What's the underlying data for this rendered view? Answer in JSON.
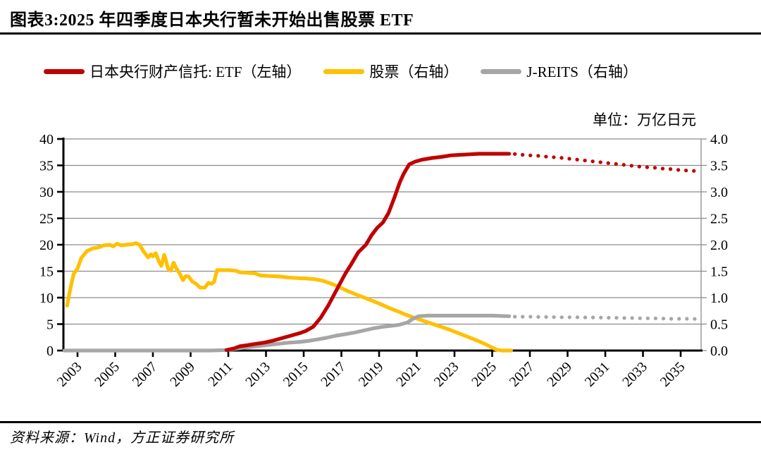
{
  "header": {
    "title": "图表3:2025 年四季度日本央行暂未开始出售股票 ETF"
  },
  "footer": {
    "source": "资料来源：Wind，方正证券研究所"
  },
  "chart_data": {
    "type": "line",
    "title": "图表3:2025 年四季度日本央行暂未开始出售股票 ETF",
    "unit_label": "单位：万亿日元",
    "grid": true,
    "legend_position": "top",
    "colors": {
      "etf_red": "#C00000",
      "stock_yellow": "#FFC000",
      "jreits_gray": "#A6A6A6",
      "gridline": "#8C8C8C",
      "axis": "#000000"
    },
    "x_axis": {
      "tick_labels": [
        "2003",
        "2005",
        "2007",
        "2009",
        "2011",
        "2013",
        "2015",
        "2017",
        "2019",
        "2021",
        "2023",
        "2025",
        "2027",
        "2029",
        "2031",
        "2033",
        "2035"
      ],
      "range": [
        2002.3,
        2036.1
      ]
    },
    "y_axis_left": {
      "tick_labels": [
        "0",
        "5",
        "10",
        "15",
        "20",
        "25",
        "30",
        "35",
        "40"
      ],
      "range": [
        0,
        40
      ]
    },
    "y_axis_right": {
      "tick_labels": [
        "0.0",
        "0.5",
        "1.0",
        "1.5",
        "2.0",
        "2.5",
        "3.0",
        "3.5",
        "4.0"
      ],
      "range": [
        0,
        4
      ]
    },
    "series": [
      {
        "name": "股票（右轴）",
        "axis": "right",
        "color": "#FFC000",
        "solid": [
          [
            2002.45,
            0.85
          ],
          [
            2002.55,
            1.05
          ],
          [
            2002.7,
            1.3
          ],
          [
            2002.8,
            1.45
          ],
          [
            2003.0,
            1.55
          ],
          [
            2003.2,
            1.75
          ],
          [
            2003.5,
            1.88
          ],
          [
            2003.8,
            1.93
          ],
          [
            2004.1,
            1.95
          ],
          [
            2004.4,
            1.99
          ],
          [
            2004.7,
            2.0
          ],
          [
            2004.9,
            1.97
          ],
          [
            2005.1,
            2.02
          ],
          [
            2005.3,
            1.99
          ],
          [
            2005.6,
            2.0
          ],
          [
            2005.9,
            2.01
          ],
          [
            2006.1,
            2.03
          ],
          [
            2006.3,
            2.0
          ],
          [
            2006.45,
            1.9
          ],
          [
            2006.6,
            1.83
          ],
          [
            2006.75,
            1.76
          ],
          [
            2006.9,
            1.82
          ],
          [
            2007.0,
            1.78
          ],
          [
            2007.15,
            1.84
          ],
          [
            2007.3,
            1.7
          ],
          [
            2007.45,
            1.6
          ],
          [
            2007.6,
            1.81
          ],
          [
            2007.7,
            1.7
          ],
          [
            2007.8,
            1.55
          ],
          [
            2007.95,
            1.51
          ],
          [
            2008.1,
            1.66
          ],
          [
            2008.25,
            1.55
          ],
          [
            2008.4,
            1.47
          ],
          [
            2008.6,
            1.33
          ],
          [
            2008.75,
            1.41
          ],
          [
            2008.9,
            1.4
          ],
          [
            2009.1,
            1.3
          ],
          [
            2009.3,
            1.26
          ],
          [
            2009.5,
            1.19
          ],
          [
            2009.75,
            1.19
          ],
          [
            2009.95,
            1.28
          ],
          [
            2010.1,
            1.26
          ],
          [
            2010.25,
            1.3
          ],
          [
            2010.4,
            1.52
          ],
          [
            2010.7,
            1.52
          ],
          [
            2011.0,
            1.52
          ],
          [
            2011.4,
            1.51
          ],
          [
            2011.6,
            1.48
          ],
          [
            2012.0,
            1.47
          ],
          [
            2012.4,
            1.46
          ],
          [
            2012.7,
            1.42
          ],
          [
            2013.2,
            1.41
          ],
          [
            2013.7,
            1.4
          ],
          [
            2014.2,
            1.38
          ],
          [
            2014.7,
            1.37
          ],
          [
            2015.2,
            1.36
          ],
          [
            2015.6,
            1.35
          ],
          [
            2016.0,
            1.32
          ],
          [
            2016.5,
            1.26
          ],
          [
            2017.0,
            1.18
          ],
          [
            2017.5,
            1.1
          ],
          [
            2018.0,
            1.03
          ],
          [
            2018.5,
            0.96
          ],
          [
            2019.0,
            0.89
          ],
          [
            2019.5,
            0.81
          ],
          [
            2020.0,
            0.74
          ],
          [
            2020.4,
            0.68
          ],
          [
            2020.8,
            0.63
          ],
          [
            2021.2,
            0.58
          ],
          [
            2021.7,
            0.52
          ],
          [
            2022.2,
            0.46
          ],
          [
            2022.7,
            0.4
          ],
          [
            2023.2,
            0.33
          ],
          [
            2023.7,
            0.26
          ],
          [
            2024.2,
            0.19
          ],
          [
            2024.7,
            0.11
          ],
          [
            2025.2,
            0.02
          ],
          [
            2025.5,
            0.0
          ],
          [
            2026.0,
            0.0
          ]
        ],
        "dotted": []
      },
      {
        "name": "J-REITS（右轴）",
        "axis": "right",
        "color": "#A6A6A6",
        "solid": [
          [
            2002.3,
            0.0
          ],
          [
            2004.0,
            0.0
          ],
          [
            2006.0,
            0.0
          ],
          [
            2008.0,
            0.0
          ],
          [
            2010.0,
            0.0
          ],
          [
            2010.9,
            0.01
          ],
          [
            2011.3,
            0.03
          ],
          [
            2011.7,
            0.05
          ],
          [
            2012.2,
            0.07
          ],
          [
            2012.7,
            0.09
          ],
          [
            2013.2,
            0.11
          ],
          [
            2013.7,
            0.13
          ],
          [
            2014.2,
            0.15
          ],
          [
            2014.7,
            0.16
          ],
          [
            2015.2,
            0.18
          ],
          [
            2015.7,
            0.21
          ],
          [
            2016.2,
            0.24
          ],
          [
            2016.7,
            0.28
          ],
          [
            2017.2,
            0.31
          ],
          [
            2017.7,
            0.34
          ],
          [
            2018.2,
            0.38
          ],
          [
            2018.7,
            0.42
          ],
          [
            2019.2,
            0.45
          ],
          [
            2019.7,
            0.47
          ],
          [
            2020.1,
            0.49
          ],
          [
            2020.5,
            0.53
          ],
          [
            2020.8,
            0.6
          ],
          [
            2021.1,
            0.65
          ],
          [
            2021.6,
            0.66
          ],
          [
            2022.1,
            0.66
          ],
          [
            2023.0,
            0.66
          ],
          [
            2024.0,
            0.66
          ],
          [
            2025.0,
            0.66
          ],
          [
            2025.9,
            0.65
          ]
        ],
        "dotted": [
          [
            2026.2,
            0.64
          ],
          [
            2027.0,
            0.64
          ],
          [
            2027.5,
            0.635
          ],
          [
            2028.0,
            0.635
          ],
          [
            2028.5,
            0.63
          ],
          [
            2029.0,
            0.63
          ],
          [
            2029.5,
            0.63
          ],
          [
            2030.0,
            0.625
          ],
          [
            2030.5,
            0.625
          ],
          [
            2031.0,
            0.62
          ],
          [
            2031.5,
            0.62
          ],
          [
            2032.0,
            0.615
          ],
          [
            2032.5,
            0.615
          ],
          [
            2033.0,
            0.61
          ],
          [
            2033.5,
            0.61
          ],
          [
            2034.0,
            0.605
          ],
          [
            2034.5,
            0.6
          ],
          [
            2035.0,
            0.6
          ],
          [
            2035.5,
            0.6
          ],
          [
            2036.05,
            0.595
          ]
        ]
      },
      {
        "name": "日本央行财产信托: ETF（左轴）",
        "axis": "left",
        "color": "#C00000",
        "solid": [
          [
            2010.9,
            0.1
          ],
          [
            2011.3,
            0.4
          ],
          [
            2011.6,
            0.8
          ],
          [
            2012.0,
            1.0
          ],
          [
            2012.5,
            1.3
          ],
          [
            2012.9,
            1.5
          ],
          [
            2013.4,
            1.9
          ],
          [
            2013.9,
            2.4
          ],
          [
            2014.4,
            2.9
          ],
          [
            2014.8,
            3.3
          ],
          [
            2015.1,
            3.7
          ],
          [
            2015.5,
            4.5
          ],
          [
            2015.9,
            6.2
          ],
          [
            2016.3,
            8.5
          ],
          [
            2016.6,
            10.5
          ],
          [
            2016.9,
            12.5
          ],
          [
            2017.2,
            14.5
          ],
          [
            2017.5,
            16.2
          ],
          [
            2017.9,
            18.6
          ],
          [
            2018.3,
            20.0
          ],
          [
            2018.6,
            21.8
          ],
          [
            2018.9,
            23.2
          ],
          [
            2019.2,
            24.2
          ],
          [
            2019.5,
            26.0
          ],
          [
            2019.8,
            28.8
          ],
          [
            2020.1,
            31.8
          ],
          [
            2020.3,
            33.4
          ],
          [
            2020.6,
            35.2
          ],
          [
            2020.9,
            35.7
          ],
          [
            2021.3,
            36.1
          ],
          [
            2021.8,
            36.4
          ],
          [
            2022.3,
            36.6
          ],
          [
            2022.8,
            36.9
          ],
          [
            2023.3,
            37.0
          ],
          [
            2023.8,
            37.1
          ],
          [
            2024.3,
            37.2
          ],
          [
            2024.8,
            37.2
          ],
          [
            2025.3,
            37.2
          ],
          [
            2025.9,
            37.2
          ]
        ],
        "dotted": [
          [
            2026.2,
            37.15
          ],
          [
            2026.6,
            37.0
          ],
          [
            2027.0,
            36.9
          ],
          [
            2027.5,
            36.8
          ],
          [
            2028.0,
            36.6
          ],
          [
            2028.5,
            36.5
          ],
          [
            2029.0,
            36.3
          ],
          [
            2029.5,
            36.1
          ],
          [
            2030.0,
            35.9
          ],
          [
            2030.5,
            35.7
          ],
          [
            2031.0,
            35.5
          ],
          [
            2031.5,
            35.3
          ],
          [
            2032.0,
            35.1
          ],
          [
            2032.5,
            34.9
          ],
          [
            2033.0,
            34.7
          ],
          [
            2033.5,
            34.6
          ],
          [
            2034.0,
            34.4
          ],
          [
            2034.5,
            34.3
          ],
          [
            2035.0,
            34.1
          ],
          [
            2035.5,
            34.0
          ],
          [
            2036.05,
            33.9
          ]
        ]
      }
    ]
  }
}
